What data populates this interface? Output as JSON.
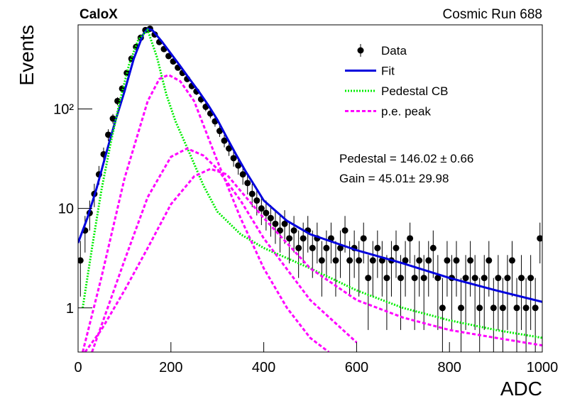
{
  "chart_data": {
    "type": "line",
    "title": "CaloX",
    "subtitle": "Cosmic Run 688",
    "x_label": "ADC",
    "y_label": "Events",
    "log_y": true,
    "xlim": [
      0,
      1000
    ],
    "xticks": [
      0,
      200,
      400,
      600,
      800,
      1000
    ],
    "ylim": [
      0.36,
      700
    ],
    "yticks": [
      1,
      10,
      {
        "value": 100,
        "label": "10²"
      }
    ],
    "legend": "upper right",
    "annotations": [
      "Pedestal = 146.02 ± 0.66",
      "Gain = 45.01± 29.98"
    ],
    "series": [
      {
        "name": "Data",
        "color": "#000000",
        "style": "points",
        "x": [
          5,
          15,
          25,
          35,
          45,
          55,
          65,
          75,
          85,
          95,
          105,
          115,
          125,
          135,
          145,
          155,
          165,
          175,
          185,
          195,
          205,
          215,
          225,
          235,
          245,
          255,
          265,
          275,
          285,
          295,
          305,
          315,
          325,
          335,
          345,
          355,
          365,
          375,
          385,
          395,
          405,
          415,
          425,
          435,
          445,
          455,
          465,
          475,
          485,
          495,
          505,
          515,
          525,
          535,
          545,
          555,
          565,
          575,
          585,
          595,
          605,
          615,
          625,
          635,
          645,
          655,
          665,
          675,
          685,
          695,
          705,
          715,
          725,
          735,
          745,
          755,
          765,
          775,
          785,
          795,
          805,
          815,
          825,
          835,
          845,
          855,
          865,
          875,
          885,
          895,
          905,
          915,
          925,
          935,
          945,
          955,
          965,
          975,
          985,
          995
        ],
        "values": [
          3,
          6,
          9,
          14,
          22,
          35,
          55,
          80,
          120,
          160,
          230,
          320,
          420,
          520,
          620,
          640,
          560,
          470,
          400,
          340,
          300,
          260,
          230,
          200,
          170,
          150,
          125,
          105,
          90,
          75,
          60,
          48,
          40,
          32,
          27,
          22,
          18,
          14,
          12,
          10,
          9,
          8,
          7,
          6,
          7,
          5,
          6,
          4,
          5,
          6,
          4,
          5,
          3,
          4,
          5,
          3,
          4,
          6,
          3,
          4,
          3,
          5,
          2,
          3,
          4,
          3,
          2,
          3,
          4,
          2,
          3,
          5,
          2,
          3,
          2,
          3,
          4,
          2,
          1,
          3,
          2,
          3,
          1,
          2,
          3,
          2,
          1,
          2,
          3,
          1,
          2,
          1,
          2,
          3,
          1,
          2,
          1,
          2,
          1,
          5
        ],
        "errors": [
          1.7,
          2.4,
          3,
          3.7,
          4.7,
          5.9,
          7.4,
          8.9,
          11,
          12.6,
          15.2,
          17.9,
          20.5,
          22.8,
          24.9,
          25.3,
          23.7,
          21.7,
          20,
          18.4,
          17.3,
          16.1,
          15.2,
          14.1,
          13,
          12.2,
          11.2,
          10.2,
          9.5,
          8.7,
          7.7,
          6.9,
          6.3,
          5.7,
          5.2,
          4.7,
          4.2,
          3.7,
          3.5,
          3.2,
          3,
          2.8,
          2.6,
          2.4,
          2.6,
          2.2,
          2.4,
          2,
          2.2,
          2.4,
          2,
          2.2,
          1.7,
          2,
          2.2,
          1.7,
          2,
          2.4,
          1.7,
          2,
          1.7,
          2.2,
          1.4,
          1.7,
          2,
          1.7,
          1.4,
          1.7,
          2,
          1.4,
          1.7,
          2.2,
          1.4,
          1.7,
          1.4,
          1.7,
          2,
          1.4,
          1,
          1.7,
          1.4,
          1.7,
          1,
          1.4,
          1.7,
          1.4,
          1,
          1.4,
          1.7,
          1,
          1.4,
          1,
          1.4,
          1.7,
          1,
          1.4,
          1,
          1.4,
          1,
          2.2
        ]
      },
      {
        "name": "Fit",
        "color": "#0000dd",
        "style": "solid",
        "x": [
          0,
          20,
          40,
          60,
          80,
          100,
          120,
          140,
          150,
          160,
          180,
          200,
          220,
          240,
          260,
          280,
          300,
          320,
          340,
          360,
          380,
          400,
          450,
          500,
          600,
          700,
          800,
          900,
          1000
        ],
        "values": [
          4.5,
          8,
          16,
          35,
          75,
          150,
          320,
          560,
          640,
          620,
          480,
          360,
          270,
          200,
          150,
          110,
          78,
          52,
          35,
          24,
          17,
          12,
          7.5,
          5.5,
          3.8,
          2.8,
          2,
          1.5,
          1.15
        ]
      },
      {
        "name": "Pedestal CB",
        "color": "#00ee00",
        "style": "dotted",
        "x": [
          10,
          30,
          50,
          70,
          90,
          110,
          130,
          150,
          170,
          190,
          210,
          240,
          270,
          300,
          350,
          400,
          500,
          600,
          700,
          800,
          900,
          1000
        ],
        "values": [
          1,
          4,
          15,
          45,
          120,
          280,
          500,
          620,
          330,
          140,
          75,
          36,
          17,
          9.3,
          5.5,
          4,
          2.5,
          1.5,
          1,
          0.75,
          0.6,
          0.5
        ]
      },
      {
        "name": "p.e. peak",
        "color": "#ff00ff",
        "style": "dashed",
        "x": [
          10,
          50,
          100,
          150,
          175,
          195,
          220,
          250,
          300,
          350,
          400,
          450,
          500,
          540
        ],
        "values": [
          0.36,
          2,
          20,
          120,
          200,
          220,
          190,
          120,
          30,
          8,
          2.5,
          1,
          0.5,
          0.36
        ]
      },
      {
        "color": "#ff00ff",
        "style": "dashed",
        "x": [
          30,
          100,
          150,
          200,
          235,
          270,
          300,
          350,
          400,
          500,
          600
        ],
        "values": [
          0.36,
          3,
          13,
          33,
          40,
          34,
          25,
          12,
          5,
          1.2,
          0.45
        ]
      },
      {
        "color": "#ff00ff",
        "style": "dashed",
        "x": [
          15,
          50,
          100,
          150,
          200,
          250,
          285,
          320,
          350,
          400,
          500,
          600,
          700,
          800,
          900,
          1000
        ],
        "values": [
          0.36,
          0.6,
          1.5,
          4,
          11,
          21,
          25,
          22,
          15,
          8,
          2.5,
          1.2,
          0.8,
          0.6,
          0.5,
          0.42
        ]
      }
    ]
  }
}
